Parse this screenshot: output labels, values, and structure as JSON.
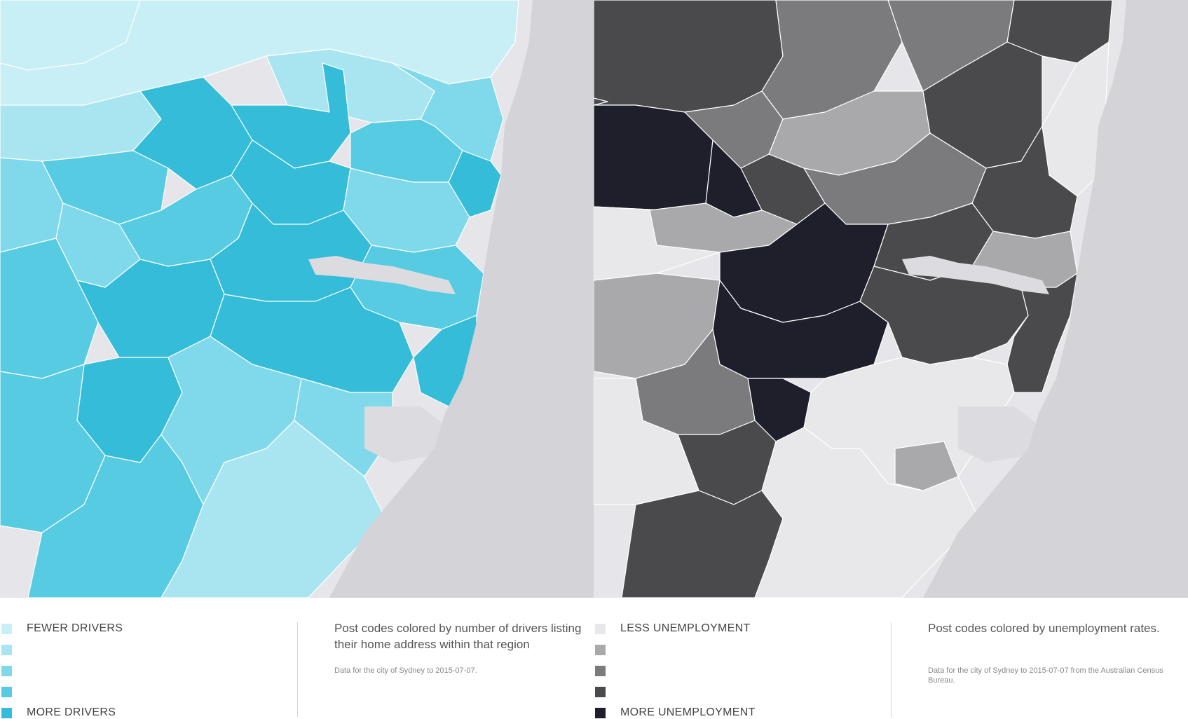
{
  "maps": [
    {
      "id": "drivers",
      "colors": [
        "#c9eff6",
        "#a9e5f0",
        "#80d9ea",
        "#57cbe2",
        "#34bcd8"
      ],
      "legend": {
        "low_label": "FEWER DRIVERS",
        "high_label": "MORE DRIVERS"
      },
      "caption": "Post codes colored by number of drivers listing their home address within that region",
      "note": "Data for the city of Sydney to 2015-07-07."
    },
    {
      "id": "unemployment",
      "colors": [
        "#e8e8ea",
        "#a9a9ab",
        "#7b7b7d",
        "#4a4a4c",
        "#1f1e2b"
      ],
      "legend": {
        "low_label": "LESS UNEMPLOYMENT",
        "high_label": "MORE UNEMPLOYMENT"
      },
      "caption": "Post codes colored by unemployment rates.",
      "note": "Data for the city of Sydney to 2015-07-07 from the Australian Census Bureau."
    }
  ],
  "map_colors": {
    "ocean": "#d3d3d8",
    "land_base": "#e6e6ea",
    "water_inlet": "#dcdce0",
    "boundary": "#ffffff"
  }
}
